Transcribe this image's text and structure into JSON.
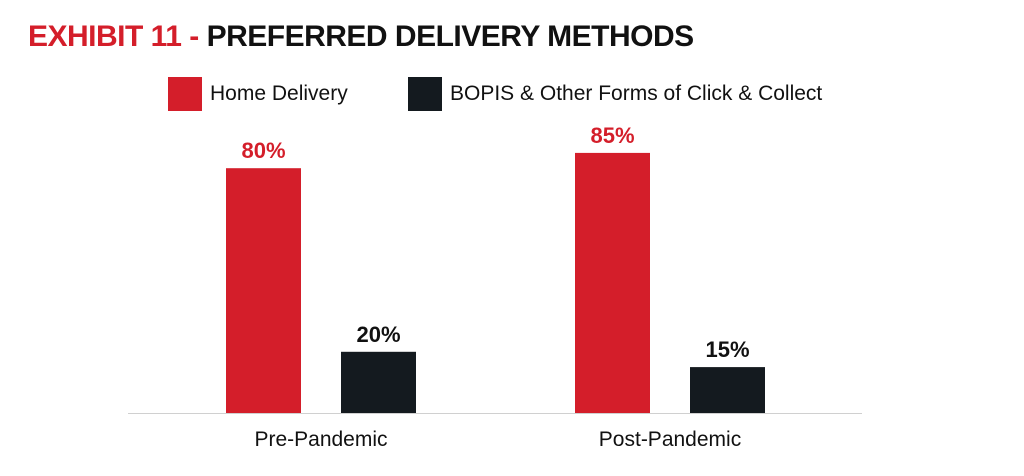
{
  "title": {
    "prefix": "EXHIBIT 11 -",
    "main": "PREFERRED DELIVERY METHODS"
  },
  "colors": {
    "home_delivery": "#d41e2a",
    "bopis": "#141a1f",
    "axis": "#d0d0d0",
    "text": "#111111"
  },
  "chart_data": {
    "type": "bar",
    "title": "PREFERRED DELIVERY METHODS",
    "xlabel": "",
    "ylabel": "",
    "ylim": [
      0,
      100
    ],
    "grid": false,
    "legend_position": "top",
    "categories": [
      "Pre-Pandemic",
      "Post-Pandemic"
    ],
    "series": [
      {
        "name": "Home Delivery",
        "values": [
          80,
          85
        ],
        "labels": [
          "80%",
          "85%"
        ],
        "color": "#d41e2a"
      },
      {
        "name": "BOPIS & Other Forms of Click & Collect",
        "values": [
          20,
          15
        ],
        "labels": [
          "20%",
          "15%"
        ],
        "color": "#141a1f"
      }
    ]
  }
}
